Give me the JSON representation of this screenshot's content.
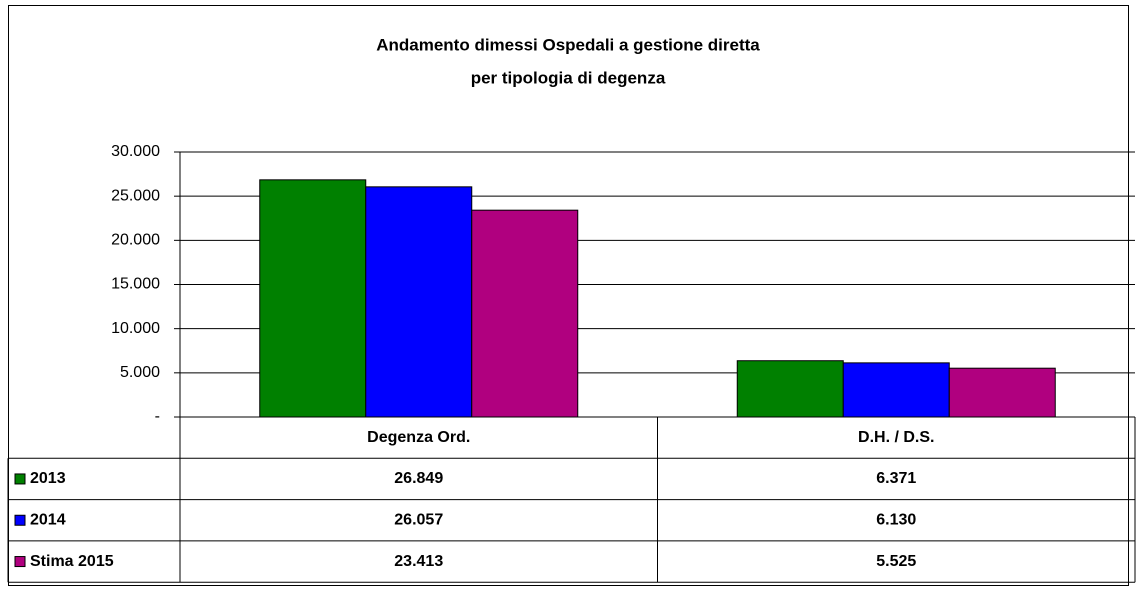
{
  "chart_data": {
    "type": "bar",
    "title": [
      "Andamento dimessi Ospedali a gestione diretta",
      "per tipologia di degenza"
    ],
    "categories": [
      "Degenza Ord.",
      "D.H. / D.S."
    ],
    "series": [
      {
        "name": "2013",
        "color": "#008000",
        "values": [
          26849,
          6371
        ],
        "value_labels": [
          "26.849",
          "6.371"
        ]
      },
      {
        "name": "2014",
        "color": "#0000ff",
        "values": [
          26057,
          6130
        ],
        "value_labels": [
          "26.057",
          "6.130"
        ]
      },
      {
        "name": "Stima 2015",
        "color": "#b0007f",
        "values": [
          23413,
          5525
        ],
        "value_labels": [
          "23.413",
          "5.525"
        ]
      }
    ],
    "ylim": [
      0,
      30000
    ],
    "yticks": [
      {
        "value": 0,
        "label": "-"
      },
      {
        "value": 5000,
        "label": "5.000"
      },
      {
        "value": 10000,
        "label": "10.000"
      },
      {
        "value": 15000,
        "label": "15.000"
      },
      {
        "value": 20000,
        "label": "20.000"
      },
      {
        "value": 25000,
        "label": "25.000"
      },
      {
        "value": 30000,
        "label": "30.000"
      }
    ],
    "grid": true
  }
}
